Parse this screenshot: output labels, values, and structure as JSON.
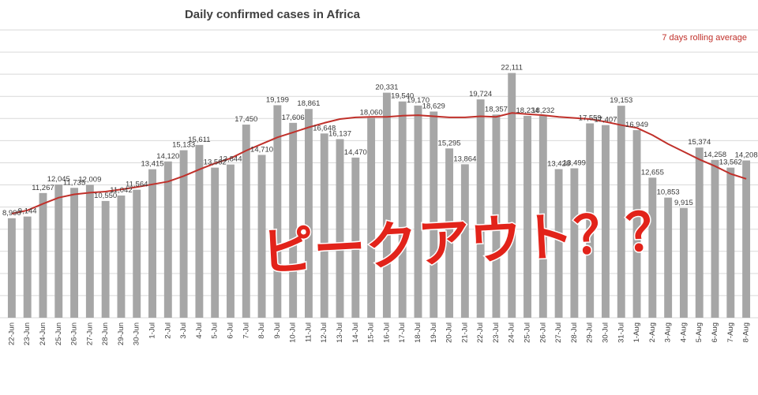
{
  "chart_data": {
    "type": "bar",
    "title": "Daily confirmed cases in Africa",
    "series": [
      {
        "type": "bar",
        "values": [
          8990,
          9144,
          11267,
          12045,
          11735,
          12009,
          10550,
          11042,
          11564,
          13415,
          14120,
          15133,
          15611,
          13562,
          13844,
          17450,
          14710,
          19199,
          17606,
          18861,
          16648,
          16137,
          14470,
          18060,
          20331,
          19540,
          19170,
          18629,
          15295,
          13864,
          19724,
          18357,
          22111,
          18234,
          18232,
          13428,
          13499,
          17559,
          17407,
          19153,
          16949,
          12655,
          10853,
          9915,
          15374,
          14258,
          13562,
          14208
        ],
        "labels": [
          "8,990",
          "9,144",
          "11,267",
          "12,045",
          "11,735",
          "12,009",
          "10,550",
          "11,042",
          "11,564",
          "13,415",
          "14,120",
          "15,133",
          "15,611",
          "13,562",
          "13,844",
          "17,450",
          "14,710",
          "19,199",
          "17,606",
          "18,861",
          "16,648",
          "16,137",
          "14,470",
          "18,060",
          "20,331",
          "19,540",
          "19,170",
          "18,629",
          "15,295",
          "13,864",
          "19,724",
          "18,357",
          "22,111",
          "18,234",
          "18,232",
          "13,428",
          "13,499",
          "17,559",
          "17,407",
          "19,153",
          "16,949",
          "12,655",
          "10,853",
          "9,915",
          "15,374",
          "14,258",
          "13,562",
          "14,208"
        ],
        "color": "#a6a6a6"
      },
      {
        "name": "7 days rolling average",
        "type": "line",
        "values": [
          9400,
          9700,
          10300,
          10850,
          11150,
          11300,
          11400,
          11600,
          11800,
          12050,
          12300,
          12800,
          13400,
          13950,
          14400,
          15100,
          15700,
          16300,
          16750,
          17200,
          17600,
          17950,
          18100,
          18150,
          18150,
          18250,
          18300,
          18200,
          18100,
          18100,
          18200,
          18150,
          18500,
          18400,
          18300,
          18150,
          18050,
          17950,
          17700,
          17400,
          17150,
          16500,
          15700,
          15000,
          14300,
          13700,
          13000,
          12550
        ],
        "color": "#c0302a"
      }
    ],
    "categories": [
      "22-Jun",
      "23-Jun",
      "24-Jun",
      "25-Jun",
      "26-Jun",
      "27-Jun",
      "28-Jun",
      "29-Jun",
      "30-Jun",
      "1-Jul",
      "2-Jul",
      "3-Jul",
      "4-Jul",
      "5-Jul",
      "6-Jul",
      "7-Jul",
      "8-Jul",
      "9-Jul",
      "10-Jul",
      "11-Jul",
      "12-Jul",
      "13-Jul",
      "14-Jul",
      "15-Jul",
      "16-Jul",
      "17-Jul",
      "18-Jul",
      "19-Jul",
      "20-Jul",
      "21-Jul",
      "22-Jul",
      "23-Jul",
      "24-Jul",
      "25-Jul",
      "26-Jul",
      "27-Jul",
      "28-Jul",
      "29-Jul",
      "30-Jul",
      "31-Jul",
      "1-Aug",
      "2-Aug",
      "3-Aug",
      "4-Aug",
      "5-Aug",
      "6-Aug",
      "7-Aug",
      "8-Aug"
    ],
    "ylim": [
      0,
      26000
    ],
    "grid": true,
    "legend": "top-right",
    "annotation": "ピークアウト？？"
  },
  "colors": {
    "bar": "#a6a6a6",
    "line": "#c0302a",
    "grid": "#d9d9d9",
    "annotation": "#e2231a"
  }
}
